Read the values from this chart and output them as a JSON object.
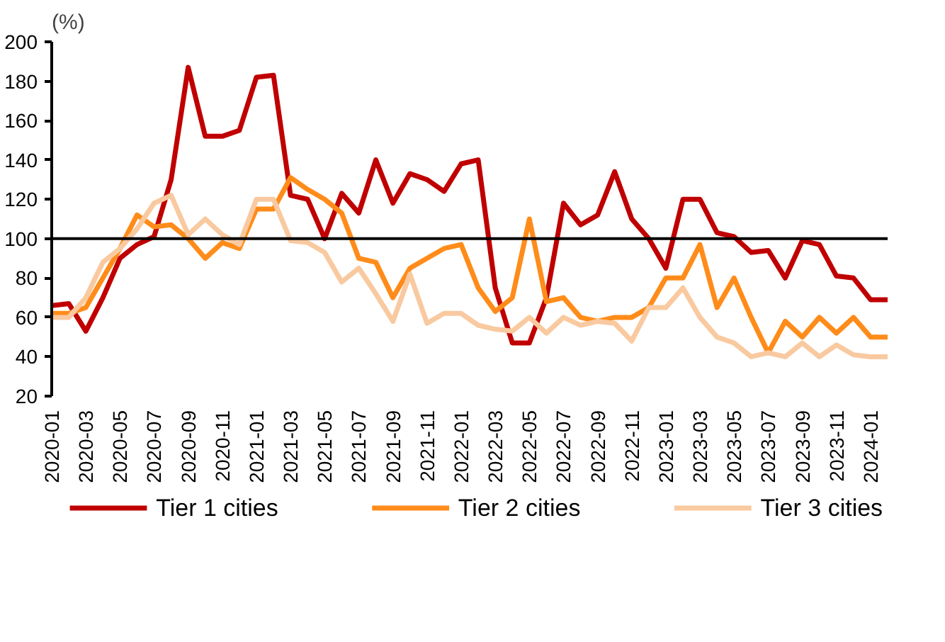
{
  "chart_data": {
    "type": "line",
    "ylabel": "(%)",
    "legend": "bottom",
    "grid": false,
    "marker": "none",
    "line_style": "solid",
    "x": [
      "2020-01",
      "2020-02",
      "2020-03",
      "2020-04",
      "2020-05",
      "2020-06",
      "2020-07",
      "2020-08",
      "2020-09",
      "2020-10",
      "2020-11",
      "2020-12",
      "2021-01",
      "2021-02",
      "2021-03",
      "2021-04",
      "2021-05",
      "2021-06",
      "2021-07",
      "2021-08",
      "2021-09",
      "2021-10",
      "2021-11",
      "2021-12",
      "2022-01",
      "2022-02",
      "2022-03",
      "2022-04",
      "2022-05",
      "2022-06",
      "2022-07",
      "2022-08",
      "2022-09",
      "2022-10",
      "2022-11",
      "2022-12",
      "2023-01",
      "2023-02",
      "2023-03",
      "2023-04",
      "2023-05",
      "2023-06",
      "2023-07",
      "2023-08",
      "2023-09",
      "2023-10",
      "2023-11",
      "2023-12",
      "2024-01",
      "2024-02"
    ],
    "xlim": [
      "2020-01",
      "2024-02"
    ],
    "xticks": [
      "2020-01",
      "2020-03",
      "2020-05",
      "2020-07",
      "2020-09",
      "2020-11",
      "2021-01",
      "2021-03",
      "2021-05",
      "2021-07",
      "2021-09",
      "2021-11",
      "2022-01",
      "2022-03",
      "2022-05",
      "2022-07",
      "2022-09",
      "2022-11",
      "2023-01",
      "2023-03",
      "2023-05",
      "2023-07",
      "2023-09",
      "2023-11",
      "2024-01"
    ],
    "ref_lines": [
      {
        "axis": "y",
        "value": 100,
        "color": "#000000"
      }
    ],
    "ylim": [
      20,
      200
    ],
    "yticks": [
      20,
      40,
      60,
      80,
      100,
      120,
      140,
      160,
      180,
      200
    ],
    "series": [
      {
        "name": "Tier 1 cities",
        "color": "#c00000",
        "values": [
          66,
          67,
          53,
          70,
          90,
          97,
          101,
          130,
          187,
          152,
          152,
          155,
          182,
          183,
          122,
          120,
          100,
          123,
          113,
          140,
          118,
          133,
          130,
          124,
          138,
          140,
          75,
          47,
          47,
          70,
          118,
          107,
          112,
          134,
          110,
          100,
          85,
          120,
          120,
          103,
          101,
          93,
          94,
          80,
          99,
          97,
          81,
          80,
          69,
          69
        ]
      },
      {
        "name": "Tier 2 cities",
        "color": "#ff8c1a",
        "values": [
          62,
          62,
          65,
          80,
          95,
          112,
          106,
          107,
          100,
          90,
          98,
          95,
          115,
          115,
          131,
          125,
          120,
          113,
          90,
          88,
          70,
          85,
          90,
          95,
          97,
          75,
          63,
          70,
          110,
          68,
          70,
          60,
          58,
          60,
          60,
          65,
          80,
          80,
          97,
          65,
          80,
          60,
          42,
          58,
          50,
          60,
          52,
          60,
          50,
          50
        ]
      },
      {
        "name": "Tier 3 cities",
        "color": "#f9c9a0",
        "values": [
          60,
          60,
          70,
          88,
          95,
          105,
          118,
          122,
          102,
          110,
          102,
          97,
          120,
          120,
          99,
          98,
          93,
          78,
          85,
          72,
          58,
          82,
          57,
          62,
          62,
          56,
          54,
          53,
          60,
          52,
          60,
          56,
          58,
          57,
          48,
          65,
          65,
          75,
          60,
          50,
          47,
          40,
          42,
          40,
          47,
          40,
          46,
          41,
          40,
          40
        ]
      }
    ]
  }
}
